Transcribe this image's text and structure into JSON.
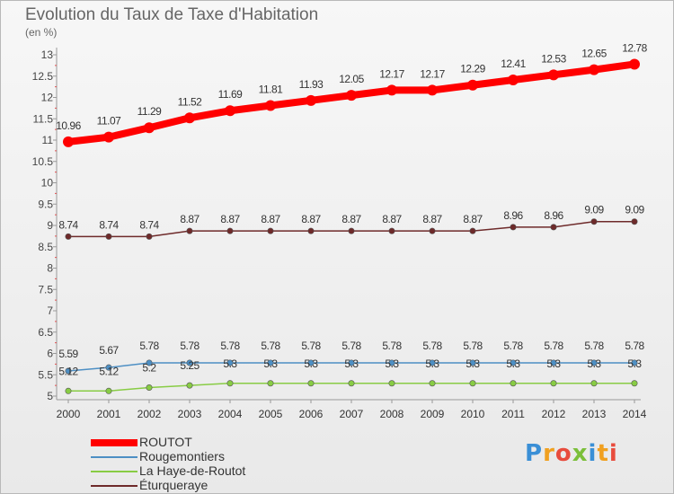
{
  "chart_data": {
    "type": "line",
    "title": "Evolution du Taux de Taxe d'Habitation",
    "subtitle": "(en %)",
    "x": [
      "2000",
      "2001",
      "2002",
      "2003",
      "2004",
      "2005",
      "2006",
      "2007",
      "2008",
      "2009",
      "2010",
      "2011",
      "2012",
      "2013",
      "2014"
    ],
    "ylim": [
      5,
      13
    ],
    "yticks": [
      "5",
      "5.5",
      "6",
      "6.5",
      "7",
      "7.5",
      "8",
      "8.5",
      "9",
      "9.5",
      "10",
      "10.5",
      "11",
      "11.5",
      "12",
      "12.5",
      "13"
    ],
    "grid": false,
    "legend_position": "bottom-left",
    "series": [
      {
        "name": "ROUTOT",
        "color": "#ff0000",
        "width": "thick",
        "values": [
          10.96,
          11.07,
          11.29,
          11.52,
          11.69,
          11.81,
          11.93,
          12.05,
          12.17,
          12.17,
          12.29,
          12.41,
          12.53,
          12.65,
          12.78
        ],
        "labels": [
          "10.96",
          "11.07",
          "11.29",
          "11.52",
          "11.69",
          "11.81",
          "11.93",
          "12.05",
          "12.17",
          "12.17",
          "12.29",
          "12.41",
          "12.53",
          "12.65",
          "12.78"
        ]
      },
      {
        "name": "Rougemontiers",
        "color": "#4d8fc4",
        "width": "thin",
        "values": [
          5.59,
          5.67,
          5.78,
          5.78,
          5.78,
          5.78,
          5.78,
          5.78,
          5.78,
          5.78,
          5.78,
          5.78,
          5.78,
          5.78,
          5.78
        ],
        "labels": [
          "5.59",
          "5.67",
          "5.78",
          "5.78",
          "5.78",
          "5.78",
          "5.78",
          "5.78",
          "5.78",
          "5.78",
          "5.78",
          "5.78",
          "5.78",
          "5.78",
          "5.78"
        ]
      },
      {
        "name": "La Haye-de-Routot",
        "color": "#88cc44",
        "width": "thin",
        "values": [
          5.12,
          5.12,
          5.2,
          5.25,
          5.3,
          5.3,
          5.3,
          5.3,
          5.3,
          5.3,
          5.3,
          5.3,
          5.3,
          5.3,
          5.3
        ],
        "labels": [
          "5.12",
          "5.12",
          "5.2",
          "5.25",
          "5.3",
          "5.3",
          "5.3",
          "5.3",
          "5.3",
          "5.3",
          "5.3",
          "5.3",
          "5.3",
          "5.3",
          "5.3"
        ]
      },
      {
        "name": "Éturqueraye",
        "color": "#6e2a2a",
        "width": "thin",
        "values": [
          8.74,
          8.74,
          8.74,
          8.87,
          8.87,
          8.87,
          8.87,
          8.87,
          8.87,
          8.87,
          8.87,
          8.96,
          8.96,
          9.09,
          9.09
        ],
        "labels": [
          "8.74",
          "8.74",
          "8.74",
          "8.87",
          "8.87",
          "8.87",
          "8.87",
          "8.87",
          "8.87",
          "8.87",
          "8.87",
          "8.96",
          "8.96",
          "9.09",
          "9.09"
        ]
      }
    ]
  },
  "logo": {
    "text": "Proxiti",
    "letters": [
      "P",
      "r",
      "o",
      "x",
      "i",
      "t",
      "i"
    ],
    "colors": [
      "#3a8fd6",
      "#f0a020",
      "#e84c3d",
      "#7bbf3a",
      "#3a8fd6",
      "#f0a020",
      "#e84c3d"
    ]
  }
}
